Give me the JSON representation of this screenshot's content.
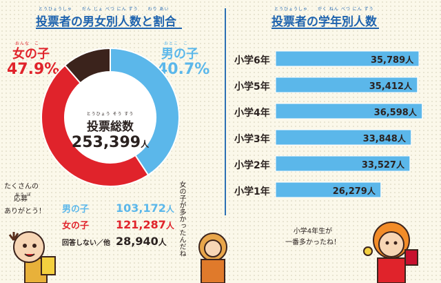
{
  "colors": {
    "female": "#e0232b",
    "male": "#5bb7ea",
    "no_answer": "#3b231c",
    "bar": "#5bb7ea",
    "title": "#1e63ae"
  },
  "left": {
    "title": "投票者の男女別人数と割合",
    "title_ruby": "とうひょうしゃ　　だん じょ べつ にん ずう　　わり あい",
    "female_label": "女の子",
    "female_ruby": "おんな　こ",
    "female_pct": "47.9%",
    "male_label": "男の子",
    "male_ruby": "おとこ　こ",
    "male_pct": "40.7%",
    "total_label": "投票総数",
    "total_ruby": "とうひょう そう すう",
    "total_value": "253,399",
    "total_unit": "人",
    "speech_left": [
      "たくさんの",
      "応募",
      "ありがとう！"
    ],
    "speech_left_ruby": "おう ぼ",
    "speech_center": "女の子が多かったんだね",
    "counts": [
      {
        "label": "男の子",
        "value": "103,172",
        "unit": "人"
      },
      {
        "label": "女の子",
        "value": "121,287",
        "unit": "人"
      },
      {
        "label": "回答しない／他",
        "value": "28,940",
        "unit": "人"
      }
    ]
  },
  "right": {
    "title": "投票者の学年別人数",
    "title_ruby": "とうひょうしゃ　　がく ねん べつ にん ずう",
    "speech": [
      "小学4年生が",
      "一番多かったね！"
    ]
  },
  "chart_data": [
    {
      "type": "pie",
      "title": "投票者の男女別人数と割合",
      "slices": [
        {
          "label": "男の子",
          "value": 103172,
          "percent": 40.7
        },
        {
          "label": "女の子",
          "value": 121287,
          "percent": 47.9
        },
        {
          "label": "回答しない／他",
          "value": 28940
        }
      ],
      "total": 253399
    },
    {
      "type": "bar",
      "orientation": "horizontal",
      "title": "投票者の学年別人数",
      "categories": [
        "小学6年",
        "小学5年",
        "小学4年",
        "小学3年",
        "小学2年",
        "小学1年"
      ],
      "values": [
        35789,
        35412,
        36598,
        33848,
        33527,
        26279
      ],
      "value_labels": [
        "35,789",
        "35,412",
        "36,598",
        "33,848",
        "33,527",
        "26,279"
      ],
      "unit": "人",
      "xlim": [
        0,
        37000
      ],
      "grid": false
    }
  ]
}
